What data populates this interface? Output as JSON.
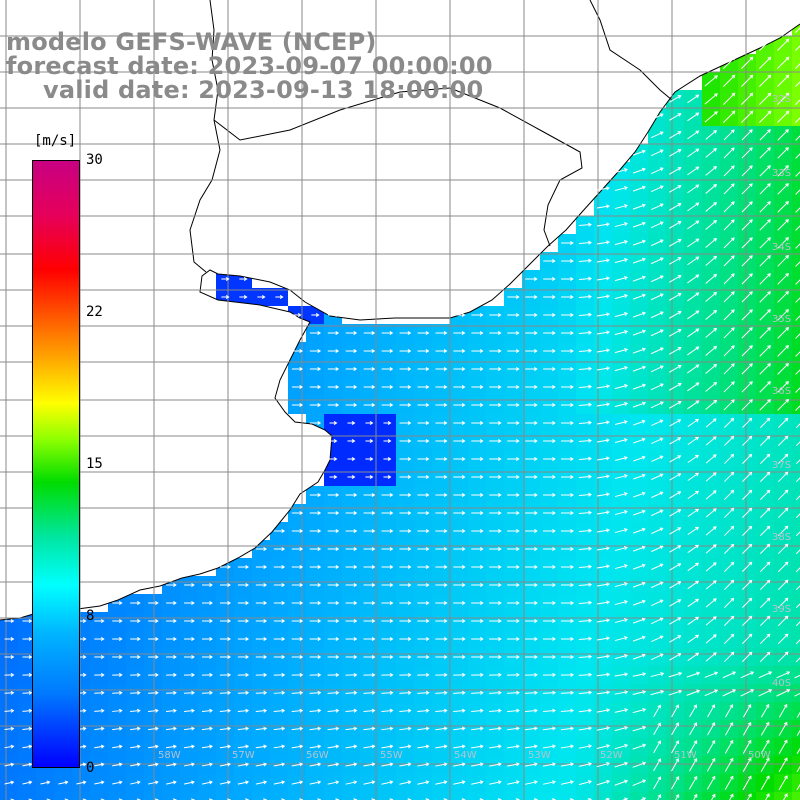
{
  "title": {
    "line1": "modelo GEFS-WAVE (NCEP)",
    "line2": "forecast date: 2023-09-07 00:00:00",
    "line3": "valid date: 2023-09-13 18:00:00"
  },
  "colorbar": {
    "unit": "[m/s]",
    "ticks": [
      "30",
      "22",
      "15",
      "8",
      "0"
    ],
    "tick_values": [
      30,
      22,
      15,
      8,
      0
    ],
    "range": [
      0,
      30
    ],
    "colors": [
      "#0000ff",
      "#00b4ff",
      "#00ffff",
      "#00dc00",
      "#ffff00",
      "#ff0000",
      "#c80082"
    ]
  },
  "map": {
    "variable": "wind speed and direction",
    "lat_labels": [
      "32S",
      "33S",
      "34S",
      "35S",
      "36S",
      "37S",
      "38S",
      "39S",
      "40S"
    ],
    "lon_labels": [
      "58W",
      "57W",
      "56W",
      "55W",
      "54W",
      "53W",
      "52W",
      "51W",
      "50W"
    ],
    "land_color": "#ffffff",
    "grid_color": "#888888",
    "coast_color": "#000000",
    "arrow_color": "#ffffff"
  }
}
